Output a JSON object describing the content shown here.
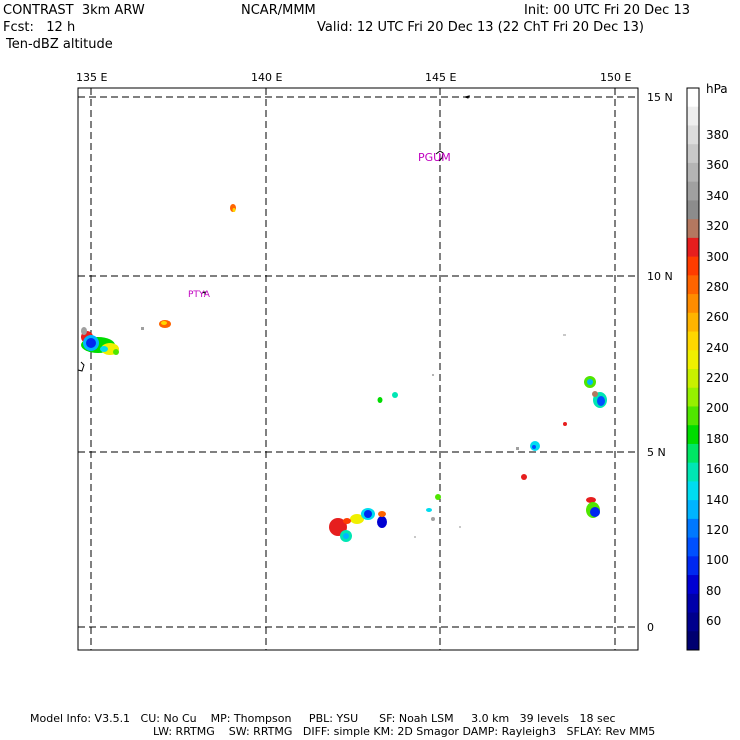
{
  "header": {
    "title": "CONTRAST  3km ARW",
    "center": "NCAR/MMM",
    "init": "Init: 00 UTC Fri 20 Dec 13",
    "fcst": "Fcst:   12 h",
    "valid": "Valid: 12 UTC Fri 20 Dec 13 (22 ChT Fri 20 Dec 13)",
    "field": "Ten-dBZ altitude"
  },
  "map": {
    "lon_labels": [
      "135 E",
      "140 E",
      "145 E",
      "150 E"
    ],
    "lat_labels": [
      "15 N",
      "10 N",
      "5 N",
      "0"
    ],
    "stations": [
      "PGUM",
      "PTYA"
    ]
  },
  "colorbar": {
    "unit": "hPa",
    "labels": [
      "380",
      "360",
      "340",
      "320",
      "300",
      "280",
      "260",
      "240",
      "220",
      "200",
      "180",
      "160",
      "140",
      "120",
      "100",
      "80",
      "60"
    ],
    "colors": [
      "#ffffff",
      "#eeeeee",
      "#dcdcdc",
      "#c8c8c8",
      "#b4b4b4",
      "#a0a0a0",
      "#8c8c8c",
      "#b47860",
      "#e61e1e",
      "#ff3c00",
      "#ff6400",
      "#ff8c00",
      "#ffb400",
      "#ffd700",
      "#f0f000",
      "#c8f000",
      "#96f000",
      "#50e600",
      "#00dc00",
      "#00e664",
      "#00e6b4",
      "#00dcf0",
      "#00b4ff",
      "#0078ff",
      "#0050ff",
      "#0028f0",
      "#0000d2",
      "#0000aa",
      "#00008c",
      "#000070"
    ]
  },
  "footer": {
    "line1": "Model Info: V3.5.1   CU: No Cu    MP: Thompson     PBL: YSU      SF: Noah LSM     3.0 km   39 levels   18 sec",
    "line2": "LW: RRTMG    SW: RRTMG   DIFF: simple KM: 2D Smagor DAMP: Rayleigh3   SFLAY: Rev MM5"
  }
}
